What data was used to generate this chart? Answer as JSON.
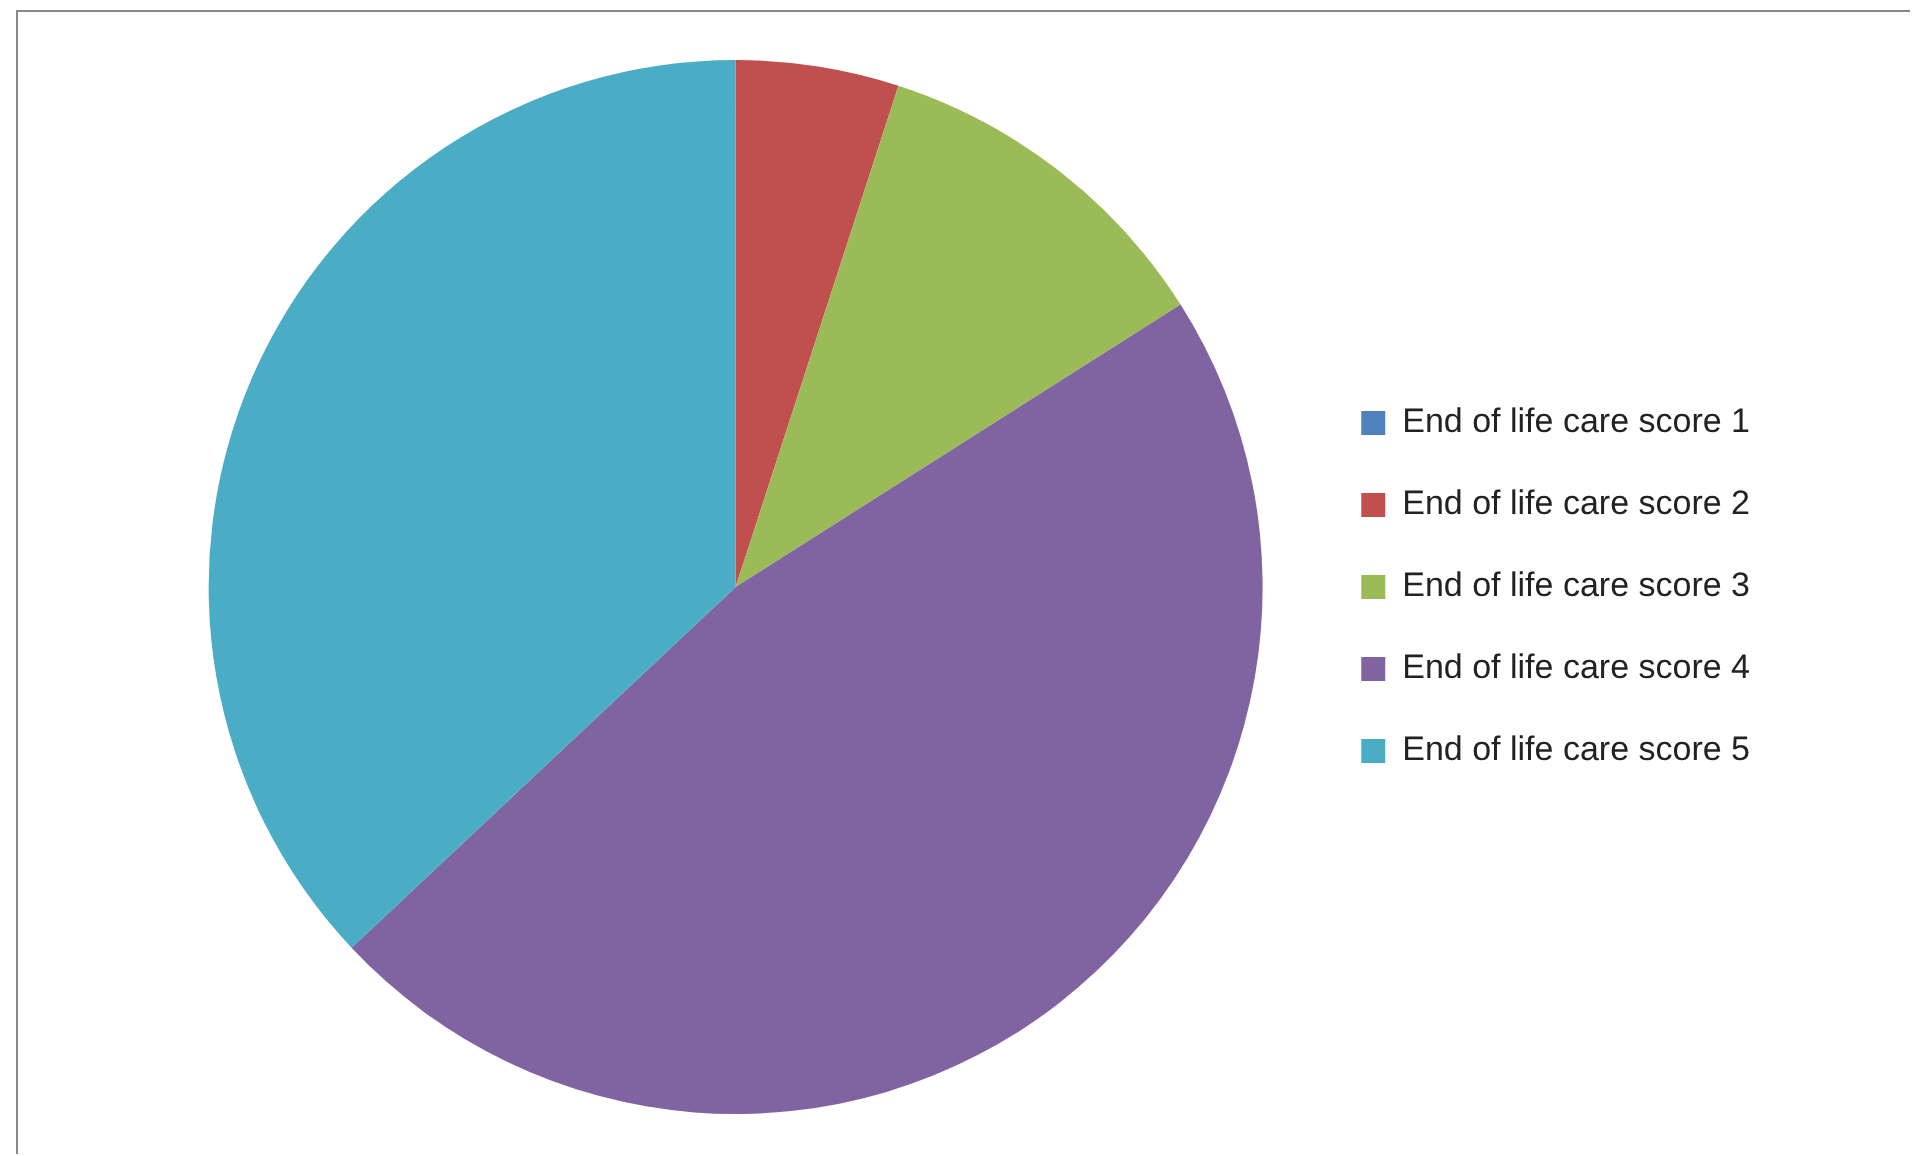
{
  "chart_data": {
    "type": "pie",
    "categories": [
      "End of life care score 1",
      "End of life care score 2",
      "End of life care score 3",
      "End of life care score 4",
      "End of life care score 5"
    ],
    "values": [
      0,
      5,
      11,
      47,
      37
    ],
    "colors": [
      "#4f81bd",
      "#c0504d",
      "#9bbb59",
      "#8064a2",
      "#4bacc6"
    ],
    "legend": "right"
  }
}
